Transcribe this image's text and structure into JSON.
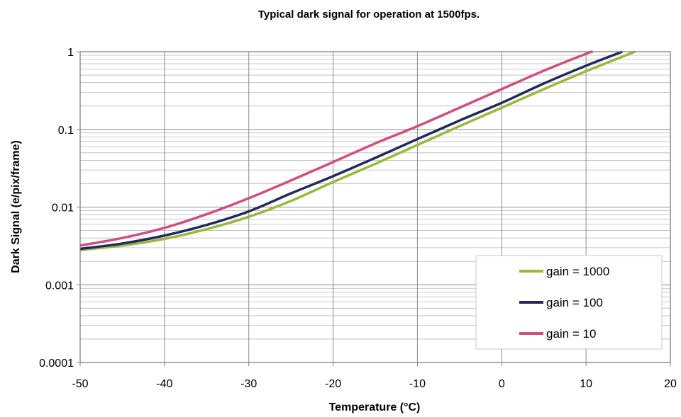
{
  "chart_data": {
    "type": "line",
    "title": "Typical dark signal for operation at 1500fps.",
    "xlabel": "Temperature (°C)",
    "ylabel": "Dark Signal (e/pix/frame)",
    "xlim": [
      -50,
      20
    ],
    "ylim": [
      0.0001,
      1
    ],
    "y_scale": "log",
    "x_ticks": [
      "-50",
      "-40",
      "-30",
      "-20",
      "-10",
      "0",
      "10",
      "20"
    ],
    "y_ticks": [
      "0.0001",
      "0.001",
      "0.01",
      "0.1",
      "1"
    ],
    "grid": true,
    "legend_position": "bottom-right",
    "series": [
      {
        "name": "gain = 1000",
        "color": "#9ab93b",
        "x": [
          -50,
          -45,
          -40,
          -35,
          -30,
          -25,
          -20,
          -15,
          -10,
          -5,
          0,
          5,
          10,
          15.8
        ],
        "y": [
          0.0028,
          0.0032,
          0.0039,
          0.0052,
          0.0075,
          0.012,
          0.021,
          0.036,
          0.063,
          0.11,
          0.19,
          0.33,
          0.56,
          1.0
        ]
      },
      {
        "name": "gain = 100",
        "color": "#23285b",
        "x": [
          -50,
          -45,
          -40,
          -35,
          -30,
          -25,
          -20,
          -15,
          -10,
          -5,
          0,
          5,
          10,
          14.3
        ],
        "y": [
          0.0029,
          0.0034,
          0.0043,
          0.0059,
          0.0088,
          0.015,
          0.025,
          0.043,
          0.075,
          0.13,
          0.22,
          0.39,
          0.66,
          1.0
        ]
      },
      {
        "name": "gain = 10",
        "color": "#cf4f7e",
        "x": [
          -50,
          -45,
          -40,
          -35,
          -30,
          -25,
          -20,
          -15,
          -10,
          -5,
          0,
          5,
          10,
          10.8
        ],
        "y": [
          0.0032,
          0.004,
          0.0054,
          0.0081,
          0.013,
          0.022,
          0.038,
          0.066,
          0.11,
          0.19,
          0.33,
          0.57,
          0.94,
          1.0
        ]
      }
    ]
  }
}
